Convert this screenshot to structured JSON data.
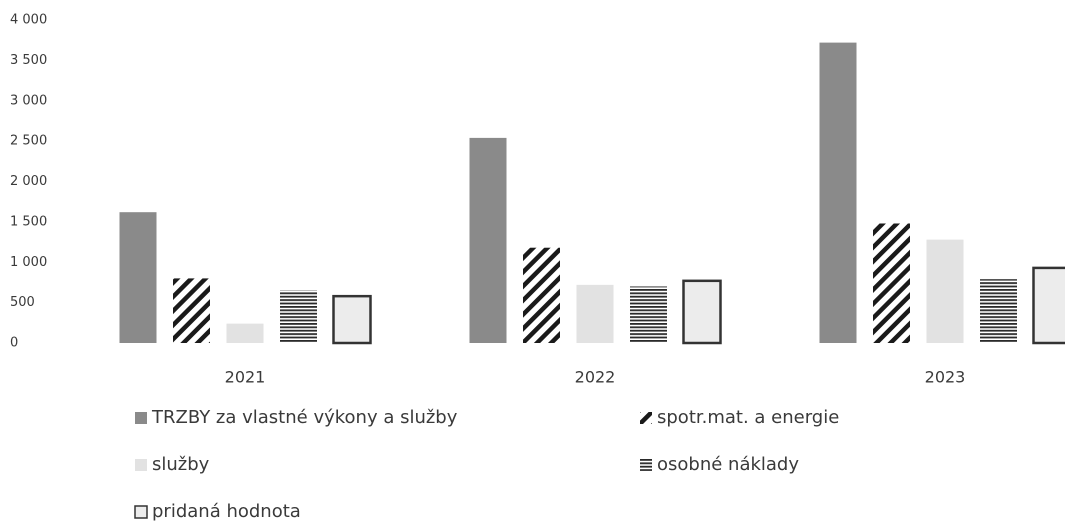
{
  "chart_data": {
    "type": "bar",
    "categories": [
      "2021",
      "2022",
      "2023"
    ],
    "series": [
      {
        "name": "TRZBY za vlastné výkony a služby",
        "color": "#8a8a8a",
        "pattern": "solid",
        "values": [
          1620,
          2540,
          3720
        ]
      },
      {
        "name": "spotr.mat. a energie",
        "color": "#1a1a1a",
        "pattern": "diagonal",
        "values": [
          800,
          1180,
          1480
        ]
      },
      {
        "name": "služby",
        "color": "#e2e2e2",
        "pattern": "solid",
        "values": [
          240,
          720,
          1280
        ]
      },
      {
        "name": "osobné náklady",
        "color": "#2a2a2a",
        "pattern": "horizontal",
        "values": [
          650,
          700,
          790
        ]
      },
      {
        "name": "pridaná hodnota",
        "color": "#333333",
        "pattern": "outline",
        "values": [
          580,
          770,
          930
        ]
      }
    ],
    "ylim": [
      0,
      4000
    ],
    "yticks": [
      0,
      500,
      {
        "value": 1000,
        "label": "1 000"
      },
      {
        "value": 1500,
        "label": "1 500"
      },
      {
        "value": 2000,
        "label": "2 000"
      },
      {
        "value": 2500,
        "label": "2 500"
      },
      {
        "value": 3000,
        "label": "3 000"
      },
      {
        "value": 3500,
        "label": "3 500"
      },
      {
        "value": 4000,
        "label": "4 000"
      }
    ],
    "grid": false,
    "legend": "bottom"
  }
}
